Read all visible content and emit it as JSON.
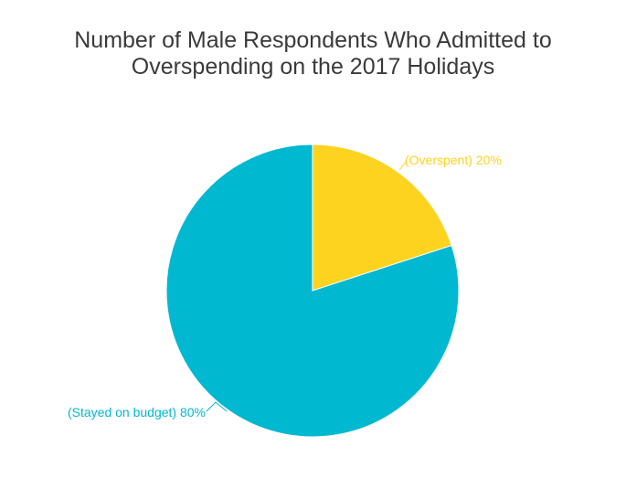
{
  "chart_data": {
    "type": "pie",
    "title_lines": [
      "Number of Male Respondents Who Admitted to",
      "Overspending on the 2017 Holidays"
    ],
    "slices": [
      {
        "label": "(Overspent) 20%",
        "value": 20,
        "color": "#fdd31f"
      },
      {
        "label": "(Stayed on budget) 80%",
        "value": 80,
        "color": "#00b8d0"
      }
    ],
    "start_angle_deg": 0,
    "direction": "clockwise"
  }
}
